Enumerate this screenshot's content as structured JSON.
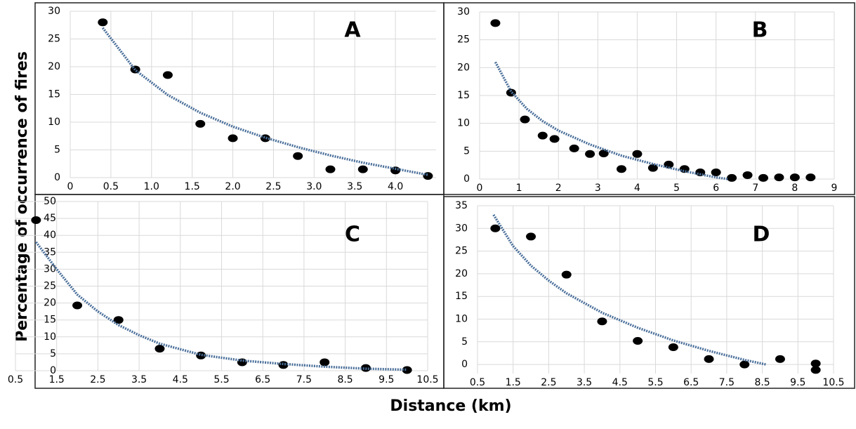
{
  "ylabel": "Percentage of occurrence of fires",
  "xlabel": "Distance (km)",
  "chart_data": [
    {
      "type": "scatter",
      "label": "A",
      "color": "#000000",
      "trend_color": "#4a6f9a",
      "grid": true,
      "x": [
        0.4,
        0.8,
        1.2,
        1.6,
        2.0,
        2.4,
        2.8,
        3.2,
        3.6,
        4.0,
        4.4
      ],
      "values": [
        28,
        19.5,
        18.5,
        9.7,
        7.1,
        7.1,
        3.9,
        1.5,
        1.5,
        1.3,
        0.3
      ],
      "trend": {
        "x": [
          0.4,
          0.8,
          1.2,
          1.6,
          2.0,
          2.4,
          2.8,
          3.2,
          3.6,
          4.0,
          4.4
        ],
        "values": [
          27.0,
          19.4,
          14.9,
          11.7,
          9.2,
          7.2,
          5.5,
          4.0,
          2.7,
          1.6,
          0.5
        ]
      },
      "xlim": [
        0,
        4.5
      ],
      "ylim": [
        0,
        30
      ],
      "xticks": [
        0,
        0.5,
        {
          "value": 1,
          "label": "1.0"
        },
        1.5,
        {
          "value": 2,
          "label": "2.0"
        },
        2.5,
        {
          "value": 3,
          "label": "3.0"
        },
        3.5,
        {
          "value": 4,
          "label": "4.0"
        }
      ],
      "yticks": [
        0,
        5,
        10,
        15,
        20,
        25,
        30
      ]
    },
    {
      "type": "scatter",
      "label": "B",
      "color": "#000000",
      "trend_color": "#4a6f9a",
      "grid": true,
      "x": [
        0.4,
        0.8,
        1.15,
        1.6,
        1.9,
        2.4,
        2.8,
        3.15,
        3.6,
        4.0,
        4.4,
        4.8,
        5.2,
        5.6,
        6.0,
        6.4,
        6.8,
        7.2,
        7.6,
        8.0,
        8.4
      ],
      "values": [
        28,
        15.5,
        10.7,
        7.8,
        7.2,
        5.5,
        4.5,
        4.6,
        1.8,
        4.5,
        2.0,
        2.6,
        1.8,
        1.2,
        1.2,
        0.2,
        0.7,
        0.2,
        0.3,
        0.3,
        0.3
      ],
      "trend": {
        "x": [
          0.4,
          0.8,
          1.2,
          1.6,
          2.0,
          2.8,
          3.6,
          4.4,
          5.2,
          6.0,
          6.3
        ],
        "values": [
          21.0,
          15.7,
          12.6,
          10.4,
          8.7,
          6.2,
          4.2,
          2.7,
          1.4,
          0.3,
          0
        ]
      },
      "xlim": [
        0,
        9
      ],
      "ylim": [
        0,
        30
      ],
      "xticks": [
        0,
        1,
        2,
        3,
        4,
        5,
        6,
        7,
        8,
        9
      ],
      "yticks": [
        0,
        5,
        10,
        15,
        20,
        25,
        30
      ]
    },
    {
      "type": "scatter",
      "label": "C",
      "color": "#000000",
      "trend_color": "#4a6f9a",
      "grid": true,
      "x": [
        1,
        2,
        3,
        4,
        5,
        6,
        7,
        8,
        9,
        10
      ],
      "values": [
        44.5,
        19.3,
        15,
        6.5,
        4.5,
        2.5,
        1.7,
        2.5,
        0.8,
        0.2
      ],
      "trend": {
        "x": [
          1,
          1.5,
          2,
          2.5,
          3,
          3.5,
          4,
          5,
          6,
          7,
          8,
          9,
          10
        ],
        "values": [
          38,
          30,
          22.5,
          17.5,
          13.5,
          10.5,
          8,
          4.7,
          3,
          2,
          1.2,
          0.6,
          0.3
        ]
      },
      "xlim": [
        0.5,
        10.5
      ],
      "ylim": [
        0,
        50
      ],
      "xticks": [
        0.5,
        1.5,
        2.5,
        3.5,
        4.5,
        5.5,
        6.5,
        7.5,
        8.5,
        9.5,
        10.5
      ],
      "yticks": [
        0,
        5,
        10,
        15,
        20,
        25,
        30,
        35,
        40,
        45,
        50
      ]
    },
    {
      "type": "scatter",
      "label": "D",
      "color": "#000000",
      "trend_color": "#4a6f9a",
      "grid": true,
      "x": [
        1,
        2,
        3,
        4,
        5,
        6,
        7,
        8,
        9,
        10,
        10
      ],
      "values": [
        30,
        28.2,
        19.8,
        9.5,
        5.2,
        3.8,
        1.2,
        0,
        1.2,
        -1.2,
        0.2
      ],
      "trend": {
        "x": [
          0.95,
          1.5,
          2,
          2.5,
          3,
          4,
          5,
          6,
          7,
          8,
          8.6
        ],
        "values": [
          33,
          26.1,
          21.8,
          18.5,
          15.7,
          11.4,
          8.1,
          5.3,
          3.0,
          1.0,
          0
        ]
      },
      "xlim": [
        0.5,
        10.5
      ],
      "ylim": [
        -2,
        35
      ],
      "xticks": [
        0.5,
        1.5,
        2.5,
        3.5,
        4.5,
        5.5,
        6.5,
        7.5,
        8.5,
        9.5,
        10.5
      ],
      "yticks": [
        0,
        5,
        10,
        15,
        20,
        25,
        30,
        35
      ]
    }
  ]
}
